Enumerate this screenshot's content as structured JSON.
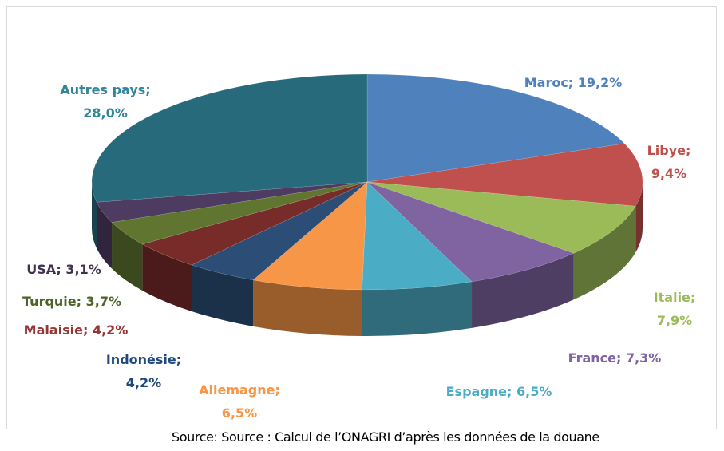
{
  "chart_data": {
    "type": "pie",
    "value_labels": [
      "Maroc; 19,2%",
      "Libye; 9,4%",
      "Italie; 7,9%",
      "France; 7,3%",
      "Espagne; 6,5%",
      "Allemagne;\n6,5%",
      "Indonésie;\n4,2%",
      "Malaisie; 4,2%",
      "Turquie; 3,7%",
      "USA; 3,1%",
      "Autres pays;\n28,0%"
    ],
    "values": [
      19.2,
      9.4,
      7.9,
      7.3,
      6.5,
      6.5,
      4.2,
      4.2,
      3.7,
      3.1,
      28.0
    ],
    "colors": [
      "#4f81bd",
      "#c0504d",
      "#9bbb59",
      "#8064a2",
      "#4bacc6",
      "#f79646",
      "#2c4d75",
      "#772c2a",
      "#5f7530",
      "#4d3b62",
      "#276a7c"
    ],
    "label_colors": [
      "#4f81bd",
      "#c0504d",
      "#9bbb59",
      "#8064a2",
      "#4bacc6",
      "#f79646",
      "#1f497d",
      "#953735",
      "#4f6228",
      "#403151",
      "#31859c"
    ],
    "source": "Source: Source : Calcul de l’ONAGRI d’après les données de la douane"
  }
}
